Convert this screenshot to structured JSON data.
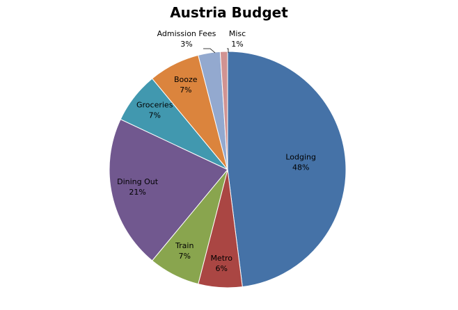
{
  "chart_data": {
    "type": "pie",
    "title": "Austria Budget",
    "slices": [
      {
        "label": "Lodging",
        "value": 48,
        "pct_label": "48%",
        "color": "#4572A7"
      },
      {
        "label": "Metro",
        "value": 6,
        "pct_label": "6%",
        "color": "#AA4643"
      },
      {
        "label": "Train",
        "value": 7,
        "pct_label": "7%",
        "color": "#89A54E"
      },
      {
        "label": "Dining Out",
        "value": 21,
        "pct_label": "21%",
        "color": "#71588F"
      },
      {
        "label": "Groceries",
        "value": 7,
        "pct_label": "7%",
        "color": "#4198AF"
      },
      {
        "label": "Booze",
        "value": 7,
        "pct_label": "7%",
        "color": "#DB843D"
      },
      {
        "label": "Admission Fees",
        "value": 3,
        "pct_label": "3%",
        "color": "#93A9CF"
      },
      {
        "label": "Misc",
        "value": 1,
        "pct_label": "1%",
        "color": "#D19392"
      }
    ],
    "start": "12 o'clock",
    "direction": "clockwise",
    "legend": "none",
    "data_labels": "category name and percentage"
  }
}
